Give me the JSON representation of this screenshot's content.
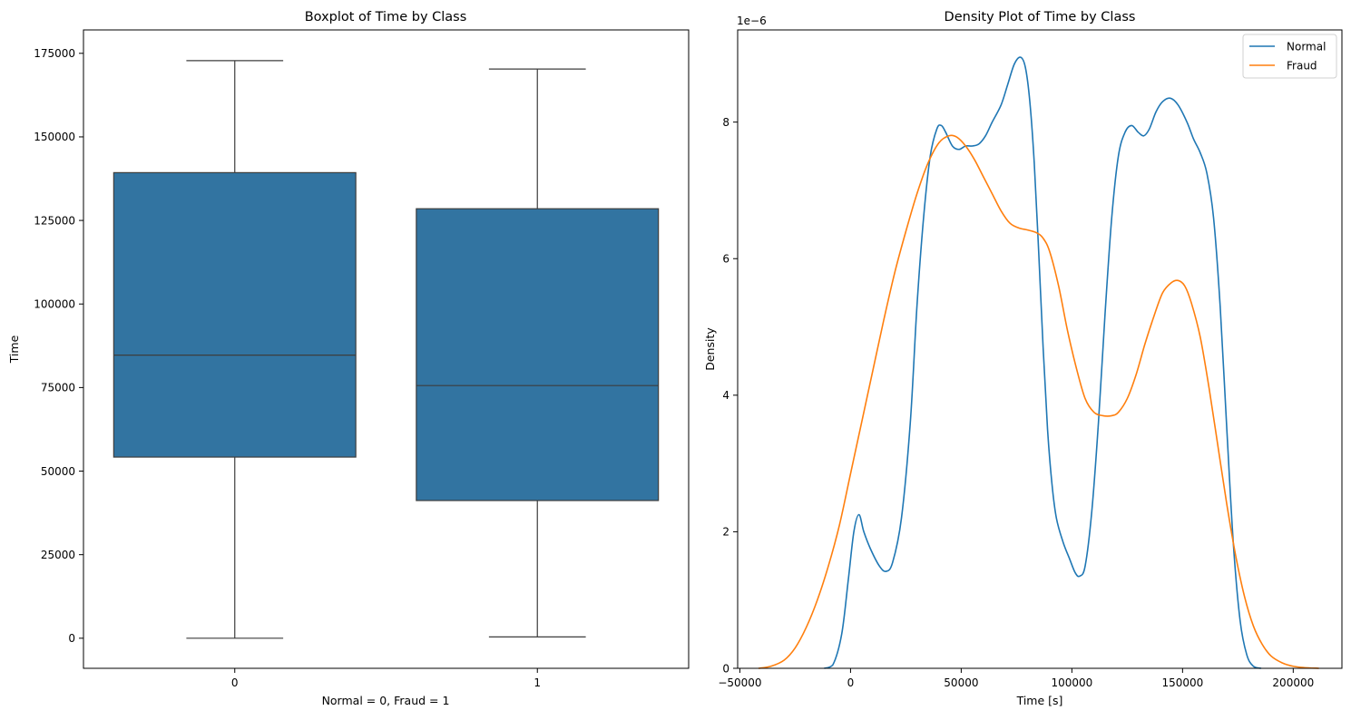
{
  "chart_data": [
    {
      "type": "box",
      "title": "Boxplot of Time by Class",
      "xlabel": "Normal = 0, Fraud = 1",
      "ylabel": "Time",
      "categories": [
        "0",
        "1"
      ],
      "ylim": [
        -9000,
        182000
      ],
      "yticks": [
        0,
        25000,
        50000,
        75000,
        100000,
        125000,
        150000,
        175000
      ],
      "yticklabels": [
        "0",
        "25000",
        "50000",
        "75000",
        "100000",
        "125000",
        "150000",
        "175000"
      ],
      "boxes": [
        {
          "category": "0",
          "whisker_low": 0,
          "q1": 54200,
          "median": 84700,
          "q3": 139300,
          "whisker_high": 172800
        },
        {
          "category": "1",
          "whisker_low": 400,
          "q1": 41200,
          "median": 75600,
          "q3": 128500,
          "whisker_high": 170300
        }
      ],
      "color": "#3274a1",
      "line_color": "#3d3d3d",
      "grid": false
    },
    {
      "type": "line",
      "title": "Density Plot of Time by Class",
      "xlabel": "Time [s]",
      "ylabel": "Density",
      "y_offset_label": "1e−6",
      "xlim": [
        -51000,
        222000
      ],
      "ylim": [
        0,
        9.35
      ],
      "xticks": [
        -50000,
        0,
        50000,
        100000,
        150000,
        200000
      ],
      "xticklabels": [
        "−50000",
        "0",
        "50000",
        "100000",
        "150000",
        "200000"
      ],
      "yticks": [
        0,
        2,
        4,
        6,
        8
      ],
      "yticklabels": [
        "0",
        "2",
        "4",
        "6",
        "8"
      ],
      "legend_position": "top-right",
      "grid": false,
      "series": [
        {
          "name": "Normal",
          "color": "#1f77b4",
          "points": [
            [
              -11900,
              0
            ],
            [
              -8000,
              0.05
            ],
            [
              -4000,
              0.5
            ],
            [
              -1000,
              1.3
            ],
            [
              1500,
              2.0
            ],
            [
              3800,
              2.25
            ],
            [
              6000,
              2.0
            ],
            [
              9000,
              1.75
            ],
            [
              13000,
              1.5
            ],
            [
              16000,
              1.42
            ],
            [
              19000,
              1.55
            ],
            [
              23000,
              2.2
            ],
            [
              27000,
              3.6
            ],
            [
              30000,
              5.3
            ],
            [
              33000,
              6.6
            ],
            [
              36000,
              7.5
            ],
            [
              39000,
              7.9
            ],
            [
              41000,
              7.95
            ],
            [
              43000,
              7.85
            ],
            [
              46000,
              7.65
            ],
            [
              49000,
              7.6
            ],
            [
              52000,
              7.65
            ],
            [
              55000,
              7.65
            ],
            [
              58000,
              7.68
            ],
            [
              61000,
              7.8
            ],
            [
              64000,
              8.0
            ],
            [
              68000,
              8.25
            ],
            [
              71000,
              8.55
            ],
            [
              74000,
              8.85
            ],
            [
              76800,
              8.95
            ],
            [
              79000,
              8.8
            ],
            [
              81000,
              8.3
            ],
            [
              83000,
              7.4
            ],
            [
              85000,
              6.1
            ],
            [
              87000,
              4.7
            ],
            [
              89000,
              3.5
            ],
            [
              91000,
              2.7
            ],
            [
              93000,
              2.2
            ],
            [
              96000,
              1.85
            ],
            [
              99000,
              1.6
            ],
            [
              101500,
              1.4
            ],
            [
              103500,
              1.35
            ],
            [
              106000,
              1.5
            ],
            [
              109000,
              2.3
            ],
            [
              112000,
              3.6
            ],
            [
              115000,
              5.2
            ],
            [
              118000,
              6.6
            ],
            [
              121000,
              7.5
            ],
            [
              124000,
              7.85
            ],
            [
              127000,
              7.95
            ],
            [
              130000,
              7.85
            ],
            [
              132500,
              7.8
            ],
            [
              135000,
              7.9
            ],
            [
              138000,
              8.15
            ],
            [
              141000,
              8.3
            ],
            [
              144500,
              8.35
            ],
            [
              148000,
              8.25
            ],
            [
              152000,
              8.0
            ],
            [
              155000,
              7.75
            ],
            [
              158000,
              7.55
            ],
            [
              161000,
              7.25
            ],
            [
              164000,
              6.6
            ],
            [
              167000,
              5.3
            ],
            [
              170000,
              3.5
            ],
            [
              173000,
              1.8
            ],
            [
              176000,
              0.7
            ],
            [
              179000,
              0.2
            ],
            [
              182000,
              0.03
            ],
            [
              185500,
              0
            ]
          ]
        },
        {
          "name": "Fraud",
          "color": "#ff7f0e",
          "points": [
            [
              -41600,
              0
            ],
            [
              -36000,
              0.03
            ],
            [
              -30000,
              0.12
            ],
            [
              -25000,
              0.3
            ],
            [
              -20000,
              0.6
            ],
            [
              -15000,
              1.0
            ],
            [
              -10000,
              1.5
            ],
            [
              -5000,
              2.1
            ],
            [
              0,
              2.85
            ],
            [
              5000,
              3.6
            ],
            [
              10000,
              4.35
            ],
            [
              15000,
              5.1
            ],
            [
              20000,
              5.8
            ],
            [
              25000,
              6.4
            ],
            [
              30000,
              6.95
            ],
            [
              35000,
              7.4
            ],
            [
              40000,
              7.7
            ],
            [
              44500,
              7.8
            ],
            [
              48000,
              7.78
            ],
            [
              52000,
              7.65
            ],
            [
              56000,
              7.45
            ],
            [
              60000,
              7.2
            ],
            [
              64000,
              6.95
            ],
            [
              68000,
              6.7
            ],
            [
              72000,
              6.52
            ],
            [
              76000,
              6.45
            ],
            [
              80000,
              6.42
            ],
            [
              84000,
              6.38
            ],
            [
              87000,
              6.3
            ],
            [
              90000,
              6.1
            ],
            [
              94000,
              5.6
            ],
            [
              98000,
              4.95
            ],
            [
              102000,
              4.4
            ],
            [
              106000,
              3.95
            ],
            [
              110000,
              3.75
            ],
            [
              114000,
              3.7
            ],
            [
              118000,
              3.7
            ],
            [
              121000,
              3.75
            ],
            [
              125000,
              3.95
            ],
            [
              129000,
              4.3
            ],
            [
              133000,
              4.75
            ],
            [
              137000,
              5.15
            ],
            [
              141000,
              5.5
            ],
            [
              145000,
              5.65
            ],
            [
              148000,
              5.68
            ],
            [
              151000,
              5.6
            ],
            [
              154000,
              5.35
            ],
            [
              158000,
              4.85
            ],
            [
              162000,
              4.1
            ],
            [
              166000,
              3.25
            ],
            [
              170000,
              2.4
            ],
            [
              174000,
              1.65
            ],
            [
              178000,
              1.05
            ],
            [
              182000,
              0.62
            ],
            [
              186000,
              0.35
            ],
            [
              190000,
              0.18
            ],
            [
              195000,
              0.08
            ],
            [
              200000,
              0.03
            ],
            [
              205000,
              0.01
            ],
            [
              211600,
              0
            ]
          ]
        }
      ]
    }
  ]
}
